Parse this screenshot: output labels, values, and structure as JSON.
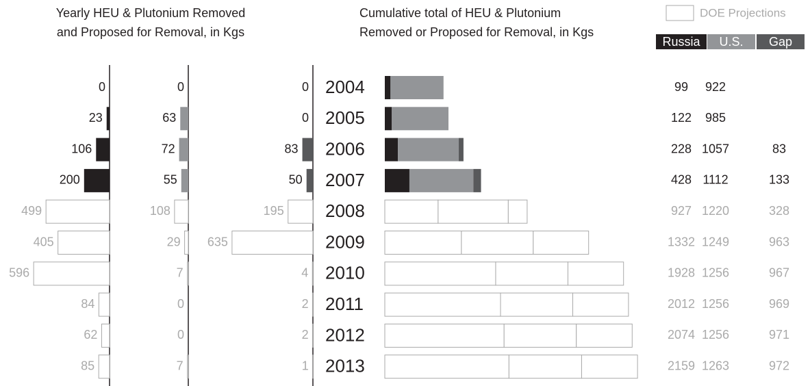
{
  "chart_data": {
    "type": "bar",
    "yearly_title": [
      "Yearly HEU & Plutonium Removed",
      "and Proposed for Removal, in Kgs"
    ],
    "cumulative_title": [
      "Cumulative total of HEU & Plutonium",
      "Removed or Proposed for Removal, in Kgs"
    ],
    "projection_label": "DOE Projections",
    "projection_color": "#aaaaaa",
    "categories": [
      "2004",
      "2005",
      "2006",
      "2007",
      "2008",
      "2009",
      "2010",
      "2011",
      "2012",
      "2013"
    ],
    "projected": [
      false,
      false,
      false,
      false,
      true,
      true,
      true,
      true,
      true,
      true
    ],
    "series": [
      {
        "name": "Russia",
        "color": "#231f20",
        "values": [
          0,
          23,
          106,
          200,
          499,
          405,
          596,
          84,
          62,
          85
        ],
        "cumulative": [
          99,
          122,
          228,
          428,
          927,
          1332,
          1928,
          2012,
          2074,
          2159
        ]
      },
      {
        "name": "U.S.",
        "color": "#939598",
        "values": [
          0,
          63,
          72,
          55,
          108,
          29,
          7,
          0,
          0,
          7
        ],
        "cumulative": [
          922,
          985,
          1057,
          1112,
          1220,
          1249,
          1256,
          1256,
          1256,
          1263
        ]
      },
      {
        "name": "Gap",
        "color": "#58595b",
        "values": [
          0,
          0,
          83,
          50,
          195,
          635,
          4,
          2,
          2,
          1
        ],
        "cumulative": [
          null,
          null,
          83,
          133,
          328,
          963,
          967,
          969,
          971,
          972
        ]
      }
    ]
  }
}
